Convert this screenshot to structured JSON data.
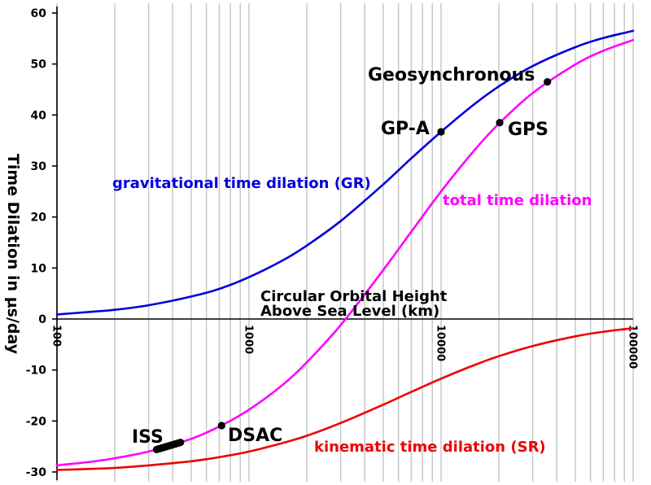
{
  "chart_data": {
    "type": "line",
    "x_scale": "log",
    "xlim": [
      100,
      100000
    ],
    "ylim": [
      -30,
      60
    ],
    "x_ticks": [
      100,
      1000,
      10000,
      100000
    ],
    "y_ticks": [
      60,
      50,
      40,
      30,
      20,
      10,
      0,
      -10,
      -20,
      -30
    ],
    "grid": {
      "x": true,
      "y": false
    },
    "xlabel": [
      "Circular Orbital Height",
      "Above Sea Level (km)"
    ],
    "ylabel": "Time Dilation in μs/day",
    "x": [
      100,
      150,
      200,
      300,
      500,
      700,
      1000,
      1500,
      2000,
      3000,
      5000,
      7000,
      10000,
      15000,
      20000,
      30000,
      50000,
      70000,
      100000
    ],
    "series": [
      {
        "name": "gravitational time dilation (GR)",
        "color": "#0000dd",
        "values": [
          0.9,
          1.4,
          1.8,
          2.7,
          4.4,
          5.9,
          8.2,
          11.5,
          14.4,
          19.2,
          26.4,
          31.5,
          36.7,
          42.2,
          45.6,
          49.6,
          53.3,
          55.1,
          56.5
        ]
      },
      {
        "name": "total time dilation",
        "color": "#ff00ff",
        "values": [
          -28.7,
          -28.0,
          -27.3,
          -26.0,
          -23.5,
          -21.1,
          -17.8,
          -12.9,
          -8.5,
          -1.2,
          9.6,
          17.1,
          25.0,
          33.2,
          38.3,
          44.3,
          49.9,
          52.6,
          54.7
        ]
      },
      {
        "name": "kinematic time dilation (SR)",
        "color": "#ee0000",
        "values": [
          -29.6,
          -29.4,
          -29.2,
          -28.7,
          -27.9,
          -27.1,
          -26.0,
          -24.3,
          -22.9,
          -20.4,
          -16.8,
          -14.3,
          -11.7,
          -9.0,
          -7.3,
          -5.3,
          -3.4,
          -2.5,
          -1.8
        ]
      }
    ],
    "annotations": [
      {
        "label": "Geosynchronous",
        "x": 35800,
        "y": 46.5
      },
      {
        "label": "GP-A",
        "x": 10000,
        "y": 36.7
      },
      {
        "label": "GPS",
        "x": 20200,
        "y": 38.5
      },
      {
        "label": "DSAC",
        "x": 720,
        "y": -20.9
      },
      {
        "label": "ISS",
        "x": [
          330,
          440
        ],
        "y": [
          -25.6,
          -24.2
        ]
      }
    ]
  }
}
